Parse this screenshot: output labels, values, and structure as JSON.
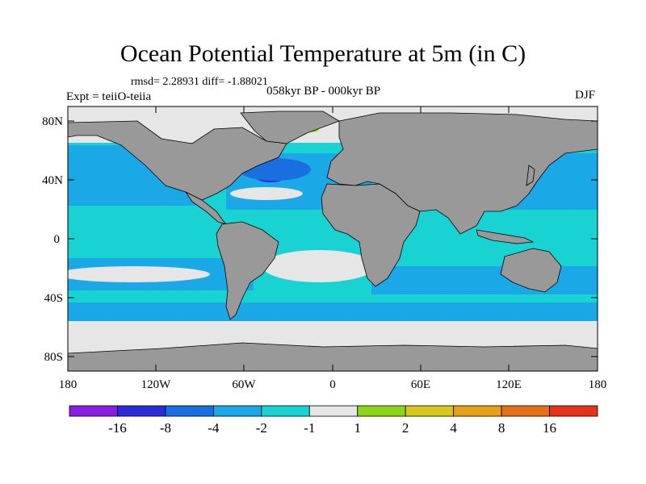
{
  "title": "Ocean Potential Temperature at 5m (in C)",
  "stats": "rmsd= 2.28931 diff= -1.88021",
  "experiment": "Expt = teiiO-teiia",
  "period": "058kyr BP - 000kyr BP",
  "season": "DJF",
  "y_ticks": [
    "80N",
    "40N",
    "0",
    "40S",
    "80S"
  ],
  "x_ticks": [
    "180",
    "120W",
    "60W",
    "0",
    "60E",
    "120E",
    "180"
  ],
  "colorbar": {
    "labels": [
      "-16",
      "-8",
      "-4",
      "-2",
      "-1",
      "1",
      "2",
      "4",
      "8",
      "16"
    ],
    "colors": [
      "#8a1ee0",
      "#2b2bdc",
      "#1a6fe0",
      "#1aa8e6",
      "#19d2d2",
      "#e6e6e6",
      "#8bd61a",
      "#d6c81a",
      "#e6a01a",
      "#e6701a",
      "#e6321a"
    ]
  },
  "land_color": "#999999",
  "colors": {
    "ocean_light": "#19d2d2",
    "ocean_mid": "#1aa8e6",
    "ocean_deep": "#1a6fe0",
    "ocean_darkest": "#2b2bdc",
    "near_zero": "#e6e6e6",
    "warm": "#8bd61a"
  }
}
